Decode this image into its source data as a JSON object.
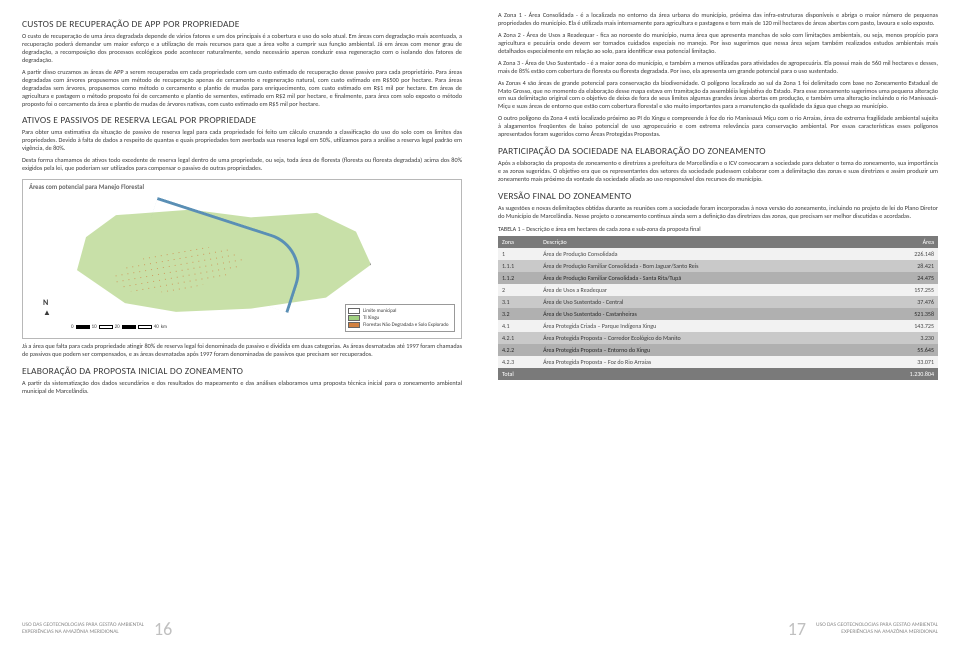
{
  "colors": {
    "text": "#3a3a3a",
    "header_bg": "#7a7a7a",
    "row_light": "#f2f2f2",
    "row_dark": "#c9c9c9",
    "row_darker": "#b0b0b0",
    "map_fill": "#c8e0a8",
    "river": "#5a8fb5",
    "page_bg": "#ffffff",
    "footer_grey": "#888888",
    "page_number": "#c0c0c0"
  },
  "left": {
    "h1": "CUSTOS DE RECUPERAÇÃO DE APP POR PROPRIEDADE",
    "p1": "O custo de recuperação de uma área degradada depende de vários fatores e um dos principais é a cobertura e uso do solo atual. Em áreas com degradação mais acentuada, a recuperação poderá demandar um maior esforço e a utilização de mais recursos para que a área volte a cumprir sua função ambiental. Já em áreas com menor grau de degradação, a recomposição dos processos ecológicos pode acontecer naturalmente, sendo necessário apenas conduzir essa regeneração com o isolando dos fatores de degradação.",
    "p2": "A partir disso cruzamos as áreas de APP a serem recuperadas em cada propriedade com um custo estimado de recuperação desse passivo para cada proprietário. Para áreas degradadas com árvores propusemos um método de recuperação apenas de cercamento e regeneração natural, com custo estimado em R$500 por hectare. Para áreas degradadas sem árvores, propusemos como método o cercamento e plantio de mudas para enriquecimento, com custo estimado em R$1 mil por hectare. Em áreas de agricultura e pastagem o método proposto foi de cercamento e plantio de sementes, estimado em R$2 mil por hectare, e finalmente, para área com solo exposto o método proposto foi o cercamento da área e plantio de mudas de árvores nativas, com custo estimado em R$5 mil por hectare.",
    "h2": "ATIVOS E PASSIVOS DE RESERVA LEGAL POR PROPRIEDADE",
    "p3": "Para obter uma estimativa da situação de passivo de reserva legal para cada propriedade foi feito um cálculo cruzando a classificação do uso do solo com os limites das propriedades. Devido à falta de dados a respeito de quantas e quais propriedades tem averbada sua reserva legal em 50%, utilizamos para a análise a reserva legal padrão em vigência, de 80%.",
    "p4": "Desta forma chamamos de ativos todo excedente de reserva legal dentro de uma propriedade, ou seja, toda área de floresta (floresta ou floresta degradada) acima dos 80% exigidos pela lei, que poderiam ser utilizados para compensar o passivo de outras propriedades.",
    "map": {
      "title": "Áreas com potencial para Manejo Florestal",
      "legend": [
        {
          "label": "Limite municipal",
          "color": "#ffffff"
        },
        {
          "label": "TI Xingu",
          "color": "#a0d080"
        },
        {
          "label": "Florestas Não Degradada e Solo Explorado",
          "color": "#d08040"
        }
      ],
      "scale_labels": [
        "0",
        "10",
        "20",
        "40"
      ],
      "scale_unit": "km"
    },
    "p5": "Já a área que falta para cada propriedade atingir 80% de reserva legal foi denominada de passivo e dividida em duas categorias. As áreas desmatadas até 1997 foram chamadas de passivos que podem ser compensados, e as áreas desmatadas após 1997 foram denominadas de passivos que precisam ser recuperados.",
    "h3": "ELABORAÇÃO DA PROPOSTA INICIAL DO ZONEAMENTO",
    "p6": "A partir da sistematização dos dados secundários e dos resultados do mapeamento e das análises elaboramos uma proposta técnica inicial para o zoneamento ambiental municipal de Marcelândia."
  },
  "right": {
    "p1": "A Zona 1 - Área Consolidada - é a localizada no entorno da área urbana do município, próxima das infra-estruturas disponíveis e abriga o maior número de pequenas propriedades do município. Ela é utilizada mais intensamente para agricultura e pastagens e tem mais de 120 mil hectares de áreas abertas com pasto, lavoura e solo exposto.",
    "p2": "A Zona 2 - Área de Usos a Readequar - fica ao noroeste do município, numa área que apresenta manchas de solo com limitações ambientais, ou seja, menos propício para agricultura e pecuária onde devem ser tomados cuidados especiais no manejo. Por isso sugerimos que nessa área sejam também realizados estudos ambientais mais detalhados especialmente em relação ao solo, para identificar essa potencial limitação.",
    "p3": "A Zona 3 - Área de Uso Sustentado - é a maior zona do município, e também a menos utilizadas para atividades de agropecuária. Ela possui mais de 560 mil hectares e desses, mais de 85% estão com cobertura de floresta ou floresta degradada. Por isso, ela apresenta um grande potencial para o uso sustentado.",
    "p4": "As Zonas 4 são áreas de grande potencial para conservação da biodiversidade. O polígono localizado ao sul da Zona 1 foi delimitado com base no Zoneamento Estadual de Mato Grosso, que no momento da elaboração desse mapa estava em tramitação da assembléia legislativa do Estado. Para esse zoneamento sugerimos uma pequena alteração em sua delimitação original com o objetivo de deixa de fora de seus limites algumas grandes áreas abertas em produção, e também uma alteração incluindo o rio Manissauá-Miçu e suas áreas de entorno que estão com cobertura florestal e são muito importantes para a manutenção da qualidade da água que chega ao município.",
    "p5": "O outro polígono da Zona 4 está localizado próximo ao PI do Xingu e compreende à foz do rio Manissauá Miçu com o rio Arraias, área de extrema fragilidade ambiental sujeita à alagamentos freqüentes de baixo potencial de uso agropecuário e com extrema relevância para conservação ambiental. Por essas características esses polígonos apresentados foram sugeridos como Áreas Protegidas Propostas.",
    "h1": "PARTICIPAÇÃO DA SOCIEDADE NA ELABORAÇÃO DO ZONEAMENTO",
    "p6": "Após a elaboração da proposta de zoneamento e diretrizes a prefeitura de Marcelândia e o ICV convocaram a sociedade para debater o tema do zoneamento, sua importância e as zonas sugeridas. O objetivo era que os representantes dos setores da sociedade pudessem colaborar com a delimitação das zonas e suas diretrizes e assim produzir um zoneamento mais próximo da vontade da sociedade aliada ao uso responsável dos recursos do município.",
    "h2": "VERSÃO FINAL DO ZONEAMENTO",
    "p7": "As sugestões e novas delimitações obtidas durante as reuniões com a sociedade foram incorporadas à nova versão do zoneamento, incluindo no projeto de lei do Plano Diretor do Município de Marcelândia. Nesse projeto o zoneamento continua ainda sem a definição das diretrizes das zonas, que precisam ser melhor discutidas e acordadas.",
    "table": {
      "caption": "TABELA 1 – Descrição e área em hectares de cada zona e sub-zona da proposta final",
      "columns": [
        "Zona",
        "Descrição",
        "Área"
      ],
      "rows": [
        {
          "shade": "light",
          "cells": [
            "1",
            "Área de Produção Consolidada",
            "226.148"
          ]
        },
        {
          "shade": "dark",
          "cells": [
            "1.1.1",
            "Área de Produção Familiar Consolidada - Bom Jaguar/Santo Reis",
            "28.421"
          ]
        },
        {
          "shade": "darker",
          "cells": [
            "1.1.2",
            "Área de Produção Familiar Consolidada - Santa Rita/Tupã",
            "24.475"
          ]
        },
        {
          "shade": "light",
          "cells": [
            "2",
            "Área de Usos a Readequar",
            "157.255"
          ]
        },
        {
          "shade": "dark",
          "cells": [
            "3.1",
            "Área de Uso Sustentado - Central",
            "37.476"
          ]
        },
        {
          "shade": "darker",
          "cells": [
            "3.2",
            "Área de Uso Sustentado - Castanheiras",
            "521.358"
          ]
        },
        {
          "shade": "light",
          "cells": [
            "4.1",
            "Área Protegida Criada – Parque Indígena Xingu",
            "143.725"
          ]
        },
        {
          "shade": "dark",
          "cells": [
            "4.2.1",
            "Área Protegida Proposta – Corredor Ecológico do Manito",
            "3.230"
          ]
        },
        {
          "shade": "darker",
          "cells": [
            "4.2.2",
            "Área Protegida Proposta – Entorno do Xingu",
            "55.645"
          ]
        },
        {
          "shade": "light",
          "cells": [
            "4.2.3",
            "Área Protegida Proposta – Foz do Rio Arraias",
            "33.071"
          ]
        }
      ],
      "total_label": "Total",
      "total_value": "1.230.804"
    }
  },
  "footer": {
    "line1": "USO DAS GEOTECNOLOGIAS PARA GESTÃO AMBIENTAL",
    "line2": "EXPERIÊNCIAS NA AMAZÔNIA MERIDIONAL",
    "page_left": "16",
    "page_right": "17"
  }
}
